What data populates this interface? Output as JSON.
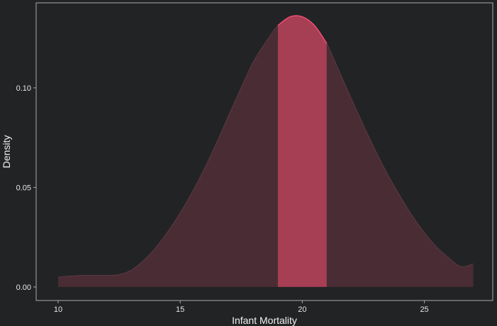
{
  "chart_data": {
    "type": "area",
    "title": "",
    "xlabel": "Infant Mortality",
    "ylabel": "Density",
    "xlim": [
      9.1,
      27.8
    ],
    "ylim": [
      -0.0068,
      0.1427
    ],
    "x_ticks": [
      10,
      15,
      20,
      25
    ],
    "y_ticks": [
      0.0,
      0.05,
      0.1
    ],
    "x_tick_labels": [
      "10",
      "15",
      "20",
      "25"
    ],
    "y_tick_labels": [
      "0.00",
      "0.05",
      "0.10"
    ],
    "grid": false,
    "legend": "none",
    "highlight_range": [
      19,
      21
    ],
    "series": [
      {
        "x": [
          10,
          10.5,
          11,
          11.5,
          12,
          12.5,
          13,
          13.5,
          14,
          14.5,
          15,
          15.5,
          16,
          16.5,
          17,
          17.5,
          18,
          18.5,
          19,
          19.5,
          20,
          20.5,
          21,
          21.5,
          22,
          22.5,
          23,
          23.5,
          24,
          24.5,
          25,
          25.5,
          26,
          26.5,
          27
        ],
        "y": [
          0.0049,
          0.0055,
          0.0058,
          0.0058,
          0.0058,
          0.0062,
          0.0085,
          0.0133,
          0.0198,
          0.0279,
          0.0372,
          0.0478,
          0.0597,
          0.0727,
          0.0866,
          0.1002,
          0.1132,
          0.1229,
          0.1313,
          0.1357,
          0.1357,
          0.1313,
          0.1223,
          0.1086,
          0.0948,
          0.0813,
          0.0684,
          0.0564,
          0.0457,
          0.0358,
          0.0272,
          0.0201,
          0.0146,
          0.0102,
          0.0116
        ]
      }
    ]
  },
  "colors": {
    "background": "#222325",
    "panel_border": "#a9a9a9",
    "area_fill": "#4a2c34",
    "area_line": "#5c3a42",
    "highlight_fill": "#a63e54",
    "highlight_line": "#f04e72",
    "text": "#e6e6e6"
  }
}
